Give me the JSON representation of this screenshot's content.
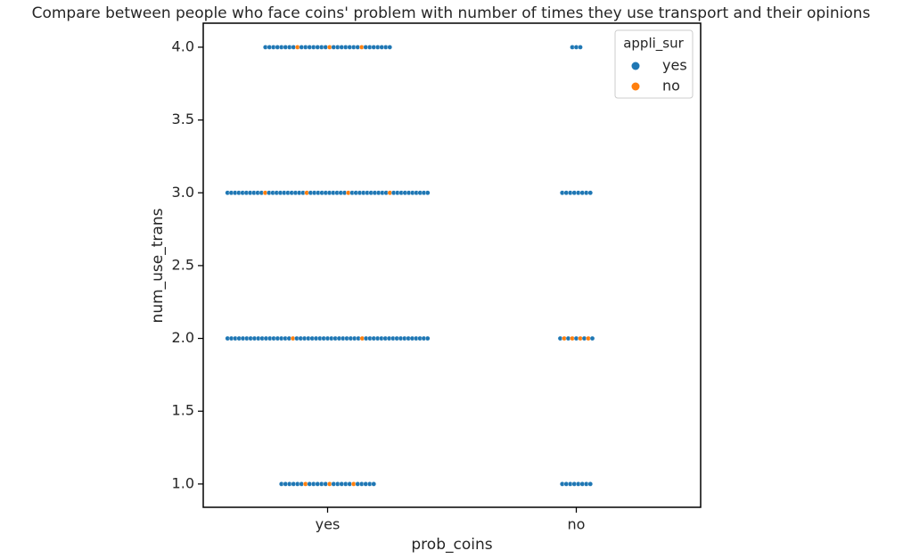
{
  "chart_data": {
    "type": "swarm",
    "title": "Compare between people who face coins' problem with number of times they use transport and their opinions",
    "x_label": "prob_coins",
    "y_label": "num_use_trans",
    "categories": [
      "yes",
      "no"
    ],
    "y_levels": [
      1,
      2,
      3,
      4
    ],
    "legend_title": "appli_sur",
    "legend_position": "upper right",
    "series": [
      {
        "name": "yes",
        "color": "#1f77b4",
        "counts": [
          [
            21,
            51,
            50,
            29
          ],
          [
            8,
            5,
            8,
            3
          ]
        ]
      },
      {
        "name": "no",
        "color": "#ff7f0e",
        "counts": [
          [
            3,
            2,
            4,
            3
          ],
          [
            0,
            4,
            0,
            0
          ]
        ]
      }
    ],
    "ylim": [
      0.84,
      4.165
    ],
    "yticks": [
      {
        "value": 1,
        "label": "1.0"
      },
      {
        "value": 1.5,
        "label": "1.5"
      },
      {
        "value": 2,
        "label": "2.0"
      },
      {
        "value": 2.5,
        "label": "2.5"
      },
      {
        "value": 3,
        "label": "3.0"
      },
      {
        "value": 3.5,
        "label": "3.5"
      },
      {
        "value": 4,
        "label": "4.0"
      }
    ]
  }
}
